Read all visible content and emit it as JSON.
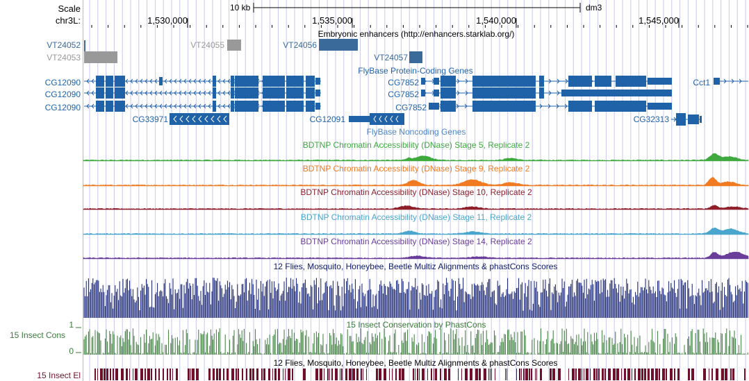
{
  "header": {
    "scale_label": "Scale",
    "scale_bar_label": "10 kb",
    "assembly": "dm3",
    "chrom_label": "chr3L:",
    "positions": [
      "1,530,000",
      "1,535,000",
      "1,540,000",
      "1,545,000"
    ]
  },
  "colors": {
    "gene_blue": "#1f62a8",
    "enhancer_blue": "#3a6a9a",
    "enhancer_gray": "#999999",
    "stage5": "#3eaa3e",
    "stage9": "#f07b22",
    "stage10": "#8f1f2a",
    "stage11": "#4aa6cc",
    "stage14": "#6a3d9a",
    "multiz": "#0c1a6b",
    "phastcons": "#3a7a3a",
    "elements": "#6f0f2a",
    "guide": "#c9c9ee",
    "left_border": "#f2a3a3"
  },
  "tracks": {
    "enhancers": {
      "title": "Embryonic enhancers (http://enhancers.starklab.org/)",
      "items": [
        "VT24052",
        "VT24053",
        "VT24055",
        "VT24056",
        "VT24057"
      ]
    },
    "genes": {
      "title": "FlyBase Protein-Coding Genes",
      "labels": [
        "CG12090",
        "CG12090",
        "CG12090",
        "CG33971",
        "CG7852",
        "CG7852",
        "CG7852",
        "CG12091",
        "Cct1",
        "CG32313"
      ]
    },
    "noncoding_title": "FlyBase Noncoding Genes",
    "dnase": [
      {
        "title": "BDTNP Chromatin Accessibility (DNase) Stage 5, Replicate 2"
      },
      {
        "title": "BDTNP Chromatin Accessibility (DNase) Stage 9, Replicate 2"
      },
      {
        "title": "BDTNP Chromatin Accessibility (DNase) Stage 10, Replicate 2"
      },
      {
        "title": "BDTNP Chromatin Accessibility (DNase) Stage 11, Replicate 2"
      },
      {
        "title": "BDTNP Chromatin Accessibility (DNase) Stage 14, Replicate 2"
      }
    ],
    "multiz_title": "12 Flies, Mosquito, Honeybee, Beetle Multiz Alignments & phastCons Scores",
    "phastcons": {
      "title": "15 Insect Conservation by PhastCons",
      "side_label": "15 Insect Cons",
      "axis_max": "1",
      "axis_min": "0"
    },
    "elements": {
      "title": "12 Flies, Mosquito, Honeybee, Beetle Multiz Alignments & phastCons Scores",
      "side_label": "15 Insect El"
    }
  }
}
